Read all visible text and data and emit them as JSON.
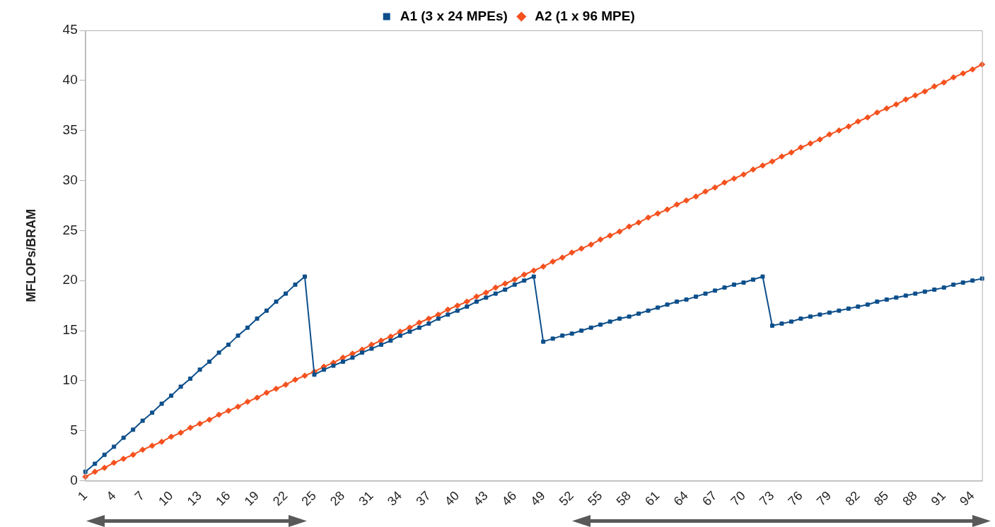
{
  "chart_data": {
    "type": "line",
    "ylabel": "MFLOPs/BRAM",
    "categories": [
      "1",
      null,
      null,
      "4",
      null,
      null,
      "7",
      null,
      null,
      "10",
      null,
      null,
      "13",
      null,
      null,
      "16",
      null,
      null,
      "19",
      null,
      null,
      "22",
      null,
      null,
      "25",
      null,
      null,
      "28",
      null,
      null,
      "31",
      null,
      null,
      "34",
      null,
      null,
      "37",
      null,
      null,
      "40",
      null,
      null,
      "43",
      null,
      null,
      "46",
      null,
      null,
      "49",
      null,
      null,
      "52",
      null,
      null,
      "55",
      null,
      null,
      "58",
      null,
      null,
      "61",
      null,
      null,
      "64",
      null,
      null,
      "67",
      null,
      null,
      "70",
      null,
      null,
      "73",
      null,
      null,
      "76",
      null,
      null,
      "79",
      null,
      null,
      "82",
      null,
      null,
      "85",
      null,
      null,
      "88",
      null,
      null,
      "91",
      null,
      null,
      "94",
      null
    ],
    "series": [
      {
        "name": "A1 (3 x 24 MPEs)",
        "color": "#0d4f8b",
        "marker": "square",
        "values": [
          0.9,
          1.7,
          2.6,
          3.4,
          4.3,
          5.1,
          6.0,
          6.8,
          7.7,
          8.5,
          9.4,
          10.2,
          11.1,
          11.9,
          12.8,
          13.6,
          14.5,
          15.3,
          16.2,
          17.0,
          17.9,
          18.7,
          19.6,
          20.4,
          10.6,
          11.1,
          11.5,
          11.9,
          12.3,
          12.8,
          13.2,
          13.6,
          14.0,
          14.5,
          14.9,
          15.3,
          15.7,
          16.2,
          16.6,
          17.0,
          17.4,
          17.9,
          18.3,
          18.7,
          19.1,
          19.6,
          20.0,
          20.4,
          13.9,
          14.2,
          14.5,
          14.7,
          15.0,
          15.3,
          15.6,
          15.9,
          16.2,
          16.4,
          16.7,
          17.0,
          17.3,
          17.6,
          17.9,
          18.1,
          18.4,
          18.7,
          19.0,
          19.3,
          19.6,
          19.8,
          20.1,
          20.4,
          15.5,
          15.7,
          15.9,
          16.2,
          16.4,
          16.6,
          16.8,
          17.0,
          17.2,
          17.4,
          17.6,
          17.9,
          18.1,
          18.3,
          18.5,
          18.7,
          18.9,
          19.1,
          19.3,
          19.6,
          19.8,
          20.0,
          20.2
        ]
      },
      {
        "name": "A2 (1 x 96 MPE)",
        "color": "#f4511e",
        "marker": "diamond",
        "values": [
          0.4,
          0.9,
          1.3,
          1.8,
          2.2,
          2.6,
          3.1,
          3.5,
          3.9,
          4.4,
          4.8,
          5.3,
          5.7,
          6.1,
          6.6,
          7.0,
          7.4,
          7.9,
          8.3,
          8.8,
          9.2,
          9.6,
          10.1,
          10.5,
          10.9,
          11.4,
          11.8,
          12.3,
          12.7,
          13.1,
          13.6,
          14.0,
          14.4,
          14.9,
          15.3,
          15.8,
          16.2,
          16.6,
          17.1,
          17.5,
          17.9,
          18.4,
          18.8,
          19.3,
          19.7,
          20.1,
          20.6,
          21.0,
          21.4,
          21.9,
          22.3,
          22.8,
          23.2,
          23.6,
          24.1,
          24.5,
          24.9,
          25.4,
          25.8,
          26.3,
          26.7,
          27.1,
          27.6,
          28.0,
          28.4,
          28.9,
          29.3,
          29.8,
          30.2,
          30.6,
          31.1,
          31.5,
          31.9,
          32.4,
          32.8,
          33.3,
          33.7,
          34.1,
          34.6,
          35.0,
          35.4,
          35.9,
          36.3,
          36.8,
          37.2,
          37.6,
          38.1,
          38.5,
          38.9,
          39.4,
          39.8,
          40.3,
          40.7,
          41.1,
          41.6
        ]
      }
    ],
    "ylim": [
      0,
      45
    ],
    "yticks": [
      0,
      5,
      10,
      15,
      20,
      25,
      30,
      35,
      40,
      45
    ],
    "grid": false,
    "legend": "top",
    "line_style": "solid"
  }
}
